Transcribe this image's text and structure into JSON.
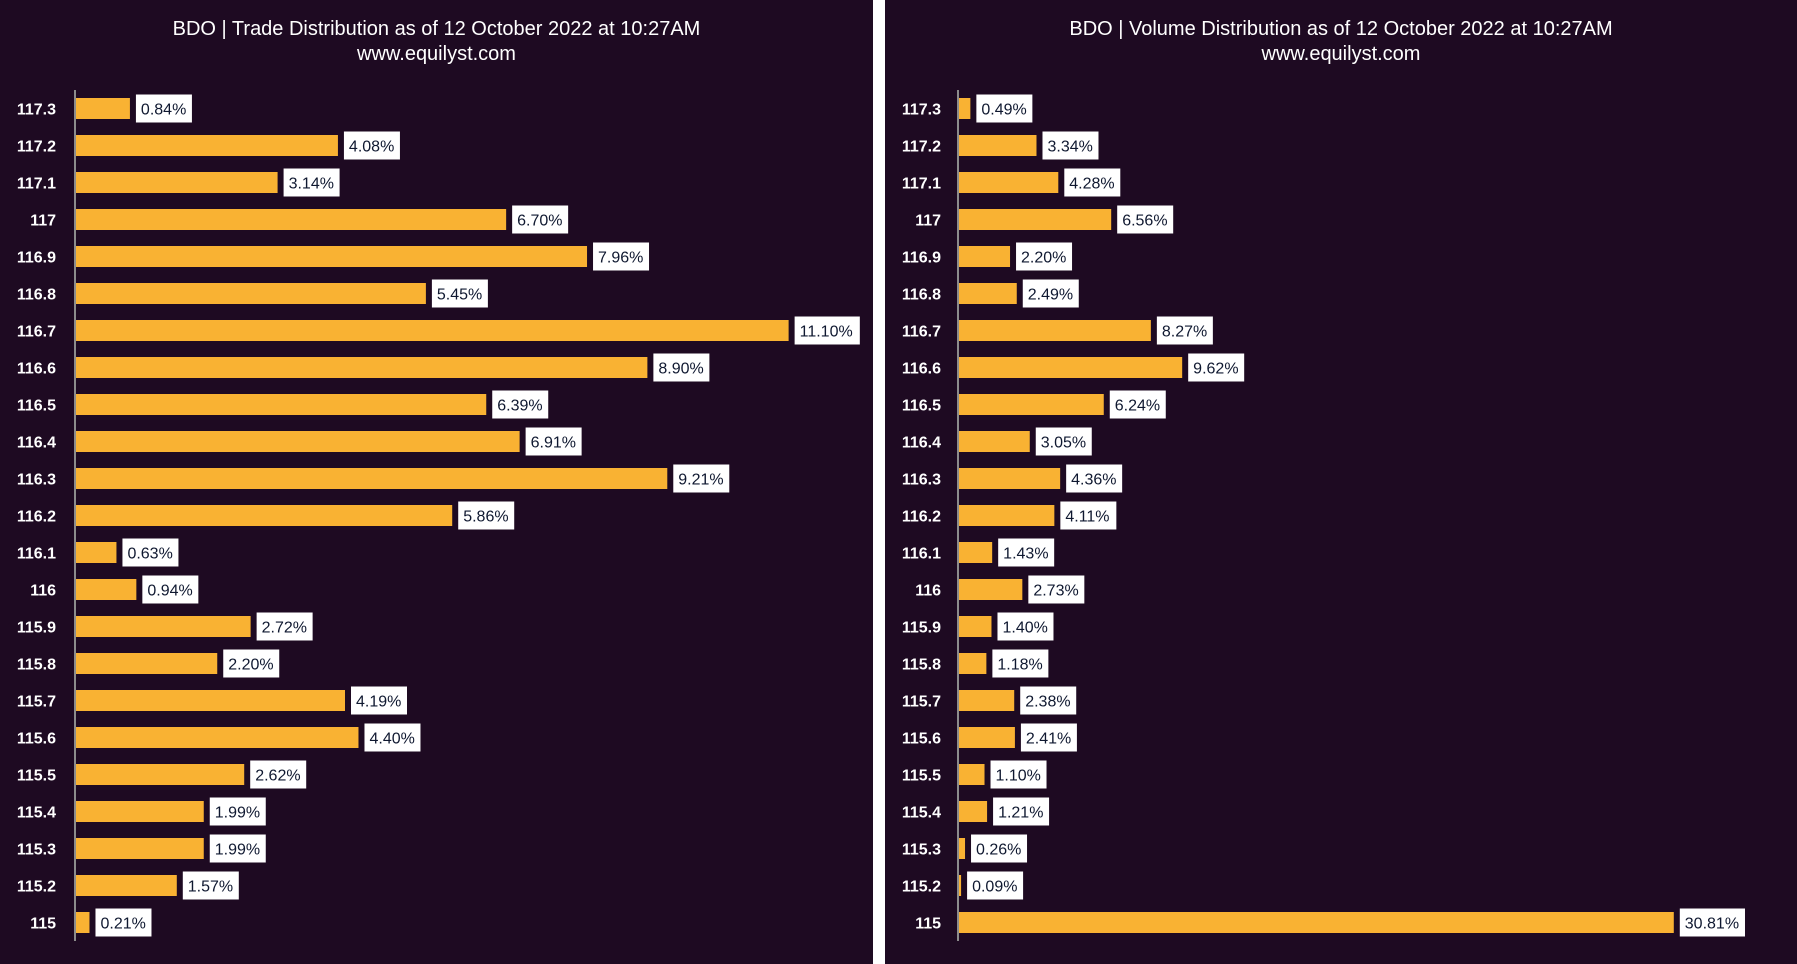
{
  "colors": {
    "background": "#1e0a22",
    "bar": "#f9b233",
    "label_box": "#ffffff",
    "label_text": "#0f1830",
    "text": "#ffffff"
  },
  "chart_data": [
    {
      "type": "bar",
      "orientation": "horizontal",
      "title": "BDO | Trade Distribution as of 12 October 2022 at 10:27AM",
      "subtitle": "www.equilyst.com",
      "categories": [
        "117.3",
        "117.2",
        "117.1",
        "117",
        "116.9",
        "116.8",
        "116.7",
        "116.6",
        "116.5",
        "116.4",
        "116.3",
        "116.2",
        "116.1",
        "116",
        "115.9",
        "115.8",
        "115.7",
        "115.6",
        "115.5",
        "115.4",
        "115.3",
        "115.2",
        "115"
      ],
      "values": [
        0.84,
        4.08,
        3.14,
        6.7,
        7.96,
        5.45,
        11.1,
        8.9,
        6.39,
        6.91,
        9.21,
        5.86,
        0.63,
        0.94,
        2.72,
        2.2,
        4.19,
        4.4,
        2.62,
        1.99,
        1.99,
        1.57,
        0.21
      ],
      "labels": [
        "0.84%",
        "4.08%",
        "3.14%",
        "6.70%",
        "7.96%",
        "5.45%",
        "11.10%",
        "8.90%",
        "6.39%",
        "6.91%",
        "9.21%",
        "5.86%",
        "0.63%",
        "0.94%",
        "2.72%",
        "2.20%",
        "4.19%",
        "4.40%",
        "2.62%",
        "1.99%",
        "1.99%",
        "1.57%",
        "0.21%"
      ],
      "unit": "%"
    },
    {
      "type": "bar",
      "orientation": "horizontal",
      "title": "BDO | Volume Distribution as of 12 October 2022 at 10:27AM",
      "subtitle": "www.equilyst.com",
      "categories": [
        "117.3",
        "117.2",
        "117.1",
        "117",
        "116.9",
        "116.8",
        "116.7",
        "116.6",
        "116.5",
        "116.4",
        "116.3",
        "116.2",
        "116.1",
        "116",
        "115.9",
        "115.8",
        "115.7",
        "115.6",
        "115.5",
        "115.4",
        "115.3",
        "115.2",
        "115"
      ],
      "values": [
        0.49,
        3.34,
        4.28,
        6.56,
        2.2,
        2.49,
        8.27,
        9.62,
        6.24,
        3.05,
        4.36,
        4.11,
        1.43,
        2.73,
        1.4,
        1.18,
        2.38,
        2.41,
        1.1,
        1.21,
        0.26,
        0.09,
        30.81
      ],
      "labels": [
        "0.49%",
        "3.34%",
        "4.28%",
        "6.56%",
        "2.20%",
        "2.49%",
        "8.27%",
        "9.62%",
        "6.24%",
        "3.05%",
        "4.36%",
        "4.11%",
        "1.43%",
        "2.73%",
        "1.40%",
        "1.18%",
        "2.38%",
        "2.41%",
        "1.10%",
        "1.21%",
        "0.26%",
        "0.09%",
        "30.81%"
      ],
      "unit": "%"
    }
  ]
}
